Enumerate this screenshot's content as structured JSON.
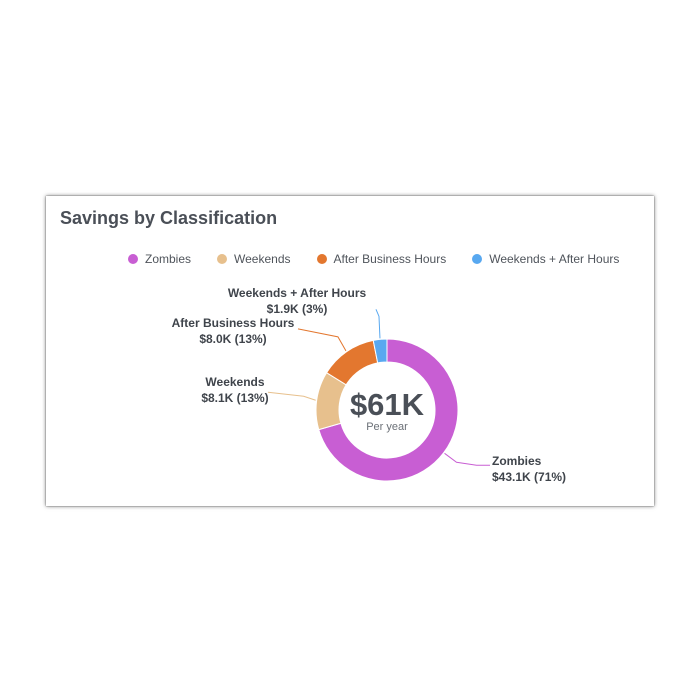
{
  "title": "Savings by Classification",
  "chart_data": {
    "type": "pie",
    "title": "Savings by Classification",
    "center_value": "$61K",
    "center_caption": "Per year",
    "legend_position": "top",
    "series": [
      {
        "name": "Zombies",
        "value": 43.1,
        "value_label": "$43.1K (71%)",
        "percent": 71,
        "color": "#c85ed3"
      },
      {
        "name": "Weekends",
        "value": 8.1,
        "value_label": "$8.1K (13%)",
        "percent": 13,
        "color": "#e7c08d"
      },
      {
        "name": "After Business Hours",
        "value": 8.0,
        "value_label": "$8.0K (13%)",
        "percent": 13,
        "color": "#e3772f"
      },
      {
        "name": "Weekends + After Hours",
        "value": 1.9,
        "value_label": "$1.9K (3%)",
        "percent": 3,
        "color": "#58a8f0"
      }
    ]
  }
}
